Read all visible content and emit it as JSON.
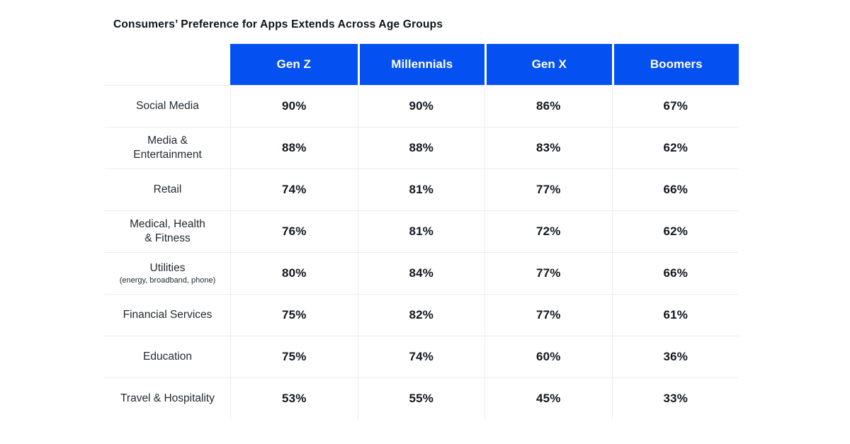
{
  "page": {
    "title": "Consumers’ Preference for Apps Extends Across Age Groups"
  },
  "colors": {
    "header_bg": "#0550F0",
    "header_text": "#FFFFFF",
    "grid_line": "#ECECEC",
    "title_text": "#0E1318",
    "label_text": "#222B33",
    "value_text": "#121820",
    "background": "#FFFFFF"
  },
  "chart_data": {
    "type": "table",
    "title": "Consumers’ Preference for Apps Extends Across Age Groups",
    "columns": [
      "Gen Z",
      "Millennials",
      "Gen X",
      "Boomers"
    ],
    "rows": [
      {
        "label": "Social Media",
        "sublabel": "",
        "values": [
          "90%",
          "90%",
          "86%",
          "67%"
        ]
      },
      {
        "label": "Media &\nEntertainment",
        "sublabel": "",
        "values": [
          "88%",
          "88%",
          "83%",
          "62%"
        ]
      },
      {
        "label": "Retail",
        "sublabel": "",
        "values": [
          "74%",
          "81%",
          "77%",
          "66%"
        ]
      },
      {
        "label": "Medical, Health\n& Fitness",
        "sublabel": "",
        "values": [
          "76%",
          "81%",
          "72%",
          "62%"
        ]
      },
      {
        "label": "Utilities",
        "sublabel": "(energy, broadband, phone)",
        "values": [
          "80%",
          "84%",
          "77%",
          "66%"
        ]
      },
      {
        "label": "Financial Services",
        "sublabel": "",
        "values": [
          "75%",
          "82%",
          "77%",
          "61%"
        ]
      },
      {
        "label": "Education",
        "sublabel": "",
        "values": [
          "75%",
          "74%",
          "60%",
          "36%"
        ]
      },
      {
        "label": "Travel & Hospitality",
        "sublabel": "",
        "values": [
          "53%",
          "55%",
          "45%",
          "33%"
        ]
      }
    ]
  }
}
